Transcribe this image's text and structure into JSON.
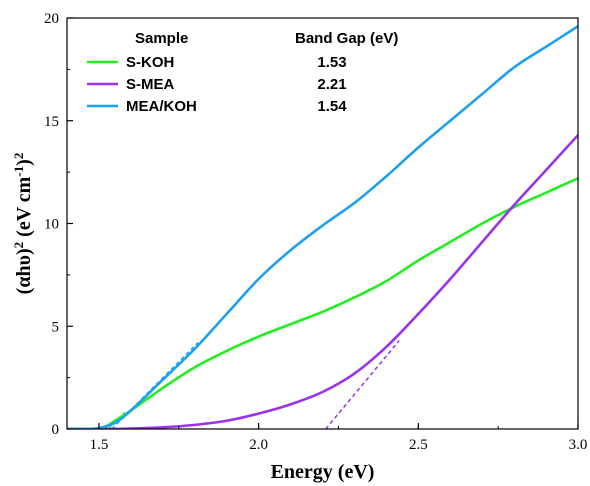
{
  "chart_data": {
    "type": "line",
    "xlabel": "Energy (eV)",
    "ylabel_parts": [
      "(αhυ)",
      "2",
      " (eV cm",
      "-1",
      ")",
      "2"
    ],
    "xlim": [
      1.4,
      3.0
    ],
    "ylim": [
      0,
      20
    ],
    "x_ticks": [
      "1.5",
      "2.0",
      "2.5",
      "3.0"
    ],
    "x_tick_values": [
      1.5,
      2.0,
      2.5,
      3.0
    ],
    "y_ticks": [
      "0",
      "5",
      "10",
      "15",
      "20"
    ],
    "y_tick_values": [
      0,
      5,
      10,
      15,
      20
    ],
    "grid": false,
    "legend": {
      "placement": "top-left",
      "header_sample": "Sample",
      "header_value": "Band Gap (eV)"
    },
    "series": [
      {
        "name": "S-KOH",
        "band_gap": "1.53",
        "color": "#22ee22",
        "x": [
          1.4,
          1.45,
          1.5,
          1.52,
          1.55,
          1.6,
          1.7,
          1.8,
          1.9,
          2.0,
          2.1,
          2.2,
          2.3,
          2.4,
          2.5,
          2.6,
          2.7,
          2.8,
          2.9,
          3.0
        ],
        "y": [
          0.0,
          0.0,
          0.02,
          0.1,
          0.4,
          0.9,
          2.0,
          3.0,
          3.8,
          4.5,
          5.1,
          5.7,
          6.4,
          7.2,
          8.2,
          9.1,
          10.0,
          10.8,
          11.5,
          12.2
        ],
        "tangent": {
          "x": [
            1.53,
            1.58
          ],
          "y": [
            0.0,
            0.8
          ]
        }
      },
      {
        "name": "S-MEA",
        "band_gap": "2.21",
        "color": "#9933ee",
        "x": [
          1.4,
          1.5,
          1.6,
          1.7,
          1.8,
          1.9,
          2.0,
          2.1,
          2.2,
          2.3,
          2.4,
          2.5,
          2.6,
          2.7,
          2.8,
          2.9,
          3.0
        ],
        "y": [
          0.0,
          0.0,
          0.02,
          0.08,
          0.2,
          0.4,
          0.75,
          1.2,
          1.8,
          2.7,
          4.0,
          5.6,
          7.3,
          9.1,
          10.9,
          12.6,
          14.3
        ],
        "tangent": {
          "x": [
            2.21,
            2.44
          ],
          "y": [
            0.0,
            4.3
          ]
        }
      },
      {
        "name": "MEA/KOH",
        "band_gap": "1.54",
        "color": "#1ea0f0",
        "x": [
          1.4,
          1.45,
          1.5,
          1.55,
          1.6,
          1.7,
          1.8,
          1.9,
          2.0,
          2.1,
          2.2,
          2.3,
          2.4,
          2.5,
          2.6,
          2.7,
          2.8,
          2.9,
          3.0
        ],
        "y": [
          0.0,
          0.0,
          0.05,
          0.3,
          0.9,
          2.4,
          3.9,
          5.6,
          7.3,
          8.7,
          9.9,
          11.0,
          12.3,
          13.7,
          15.0,
          16.3,
          17.6,
          18.6,
          19.6
        ],
        "tangent": {
          "x": [
            1.54,
            1.81
          ],
          "y": [
            0.0,
            4.2
          ]
        }
      }
    ]
  }
}
